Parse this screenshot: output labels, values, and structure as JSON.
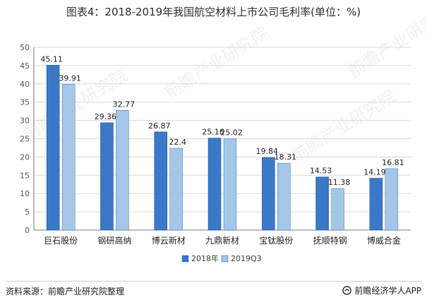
{
  "title": "图表4：2018-2019年我国航空材料上市公司毛利率(单位：%)",
  "source": "资料来源：前瞻产业研究院整理",
  "brand": "前瞻经济学人APP",
  "watermark": "前瞻产业研究院",
  "colors": {
    "series_2018": "#3a78c9",
    "series_2019": "#a4c6e8",
    "axis": "#7f7f7f",
    "grid": "#d9d9d9"
  },
  "chart_data": {
    "type": "bar",
    "categories": [
      "巨石股份",
      "钢研高纳",
      "博云新材",
      "九鼎新材",
      "宝钛股份",
      "抚顺特钢",
      "博威合金"
    ],
    "series": [
      {
        "name": "2018年",
        "values": [
          45.11,
          29.36,
          26.87,
          25.16,
          19.84,
          14.53,
          14.19
        ],
        "labels": [
          "45.11",
          "29.36",
          "26.87",
          "25.16",
          "19.84",
          "14.53",
          "14.19"
        ]
      },
      {
        "name": "2019Q3",
        "values": [
          39.91,
          32.77,
          22.4,
          25.02,
          18.31,
          11.38,
          16.81
        ],
        "labels": [
          "39.91",
          "32.77",
          "22.4",
          "25.02",
          "18.31",
          "11.38",
          "16.81"
        ]
      }
    ],
    "ylim": [
      0,
      50
    ],
    "yticks": [
      0,
      5,
      10,
      15,
      20,
      25,
      30,
      35,
      40,
      45,
      50
    ],
    "legend_position": "bottom"
  }
}
